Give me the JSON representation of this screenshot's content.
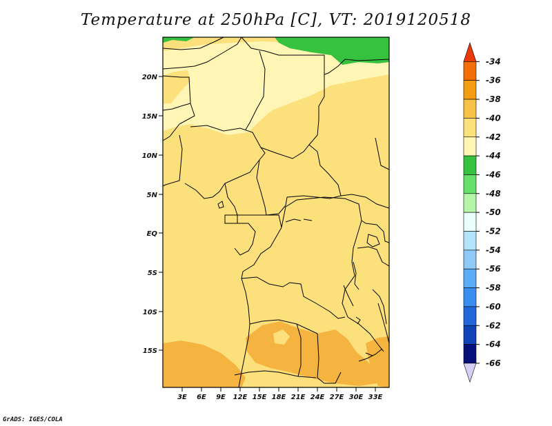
{
  "title": "Temperature at 250hPa [C], VT: 2019120518",
  "credit": "GrADS: IGES/COLA",
  "map": {
    "lat_ticks": [
      "20N",
      "15N",
      "10N",
      "5N",
      "EQ",
      "5S",
      "10S",
      "15S"
    ],
    "lon_ticks": [
      "3E",
      "6E",
      "9E",
      "12E",
      "15E",
      "18E",
      "21E",
      "24E",
      "27E",
      "30E",
      "33E"
    ],
    "colors": {
      "background_fill": "#fbe07c",
      "light_band": "#fff5b4",
      "warm_patch": "#f5b43f",
      "green_patch": "#36c23f",
      "border": "#000000"
    }
  },
  "legend": {
    "levels": [
      "-34",
      "-36",
      "-38",
      "-40",
      "-42",
      "-44",
      "-46",
      "-48",
      "-50",
      "-52",
      "-54",
      "-56",
      "-58",
      "-60",
      "-62",
      "-64",
      "-66"
    ],
    "colors": [
      "#ea3a08",
      "#f46e06",
      "#f59d12",
      "#f7c246",
      "#fbe07c",
      "#fff5b4",
      "#36c23f",
      "#65df6a",
      "#b4f5aa",
      "#e8fffa",
      "#b3e4fc",
      "#8ec9f8",
      "#5aaef5",
      "#3a8ef0",
      "#2266d9",
      "#1042b8",
      "#061079",
      "#d7d0f5"
    ]
  }
}
